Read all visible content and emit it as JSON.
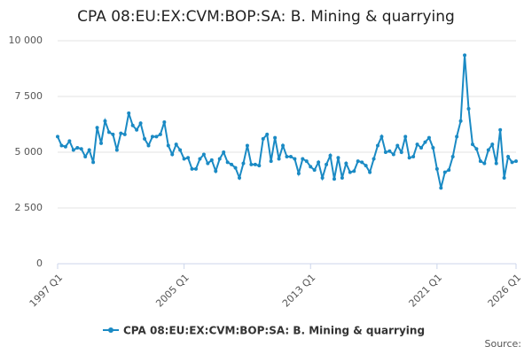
{
  "chart_data": {
    "type": "line",
    "title": "CPA 08:EU:EX:CVM:BOP:SA: B. Mining & quarrying",
    "source": "Source:",
    "categories": [
      "1997 Q1",
      null,
      null,
      null,
      null,
      null,
      null,
      null,
      null,
      null,
      null,
      null,
      null,
      null,
      null,
      null,
      null,
      null,
      null,
      null,
      null,
      null,
      null,
      null,
      null,
      null,
      null,
      null,
      null,
      null,
      null,
      null,
      "2005 Q1",
      null,
      null,
      null,
      null,
      null,
      null,
      null,
      null,
      null,
      null,
      null,
      null,
      null,
      null,
      null,
      null,
      null,
      null,
      null,
      null,
      null,
      null,
      null,
      null,
      null,
      null,
      null,
      null,
      null,
      null,
      null,
      "2013 Q1",
      null,
      null,
      null,
      null,
      null,
      null,
      null,
      null,
      null,
      null,
      null,
      null,
      null,
      null,
      null,
      null,
      null,
      null,
      null,
      null,
      null,
      null,
      null,
      null,
      null,
      null,
      null,
      null,
      null,
      null,
      null,
      "2021 Q1",
      null,
      null,
      null,
      null,
      null,
      null,
      null,
      null,
      null,
      null,
      null,
      null,
      null,
      null,
      null,
      null,
      null,
      null,
      null,
      "2026 Q1"
    ],
    "series": [
      {
        "name": "CPA 08:EU:EX:CVM:BOP:SA: B. Mining & quarrying",
        "color": "#1a8ac4",
        "values": [
          5700,
          5300,
          5250,
          5500,
          5100,
          5200,
          5150,
          4800,
          5100,
          4550,
          6100,
          5400,
          6400,
          5900,
          5800,
          5100,
          5850,
          5800,
          6750,
          6200,
          6000,
          6300,
          5600,
          5300,
          5700,
          5700,
          5800,
          6350,
          5300,
          4900,
          5350,
          5100,
          4700,
          4750,
          4250,
          4250,
          4700,
          4900,
          4500,
          4650,
          4150,
          4700,
          5000,
          4550,
          4450,
          4300,
          3850,
          4500,
          5300,
          4450,
          4450,
          4400,
          5600,
          5800,
          4600,
          5650,
          4700,
          5300,
          4800,
          4800,
          4700,
          4050,
          4700,
          4600,
          4350,
          4200,
          4550,
          3850,
          4450,
          4850,
          3800,
          4750,
          3850,
          4500,
          4100,
          4150,
          4600,
          4550,
          4400,
          4100,
          4700,
          5300,
          5700,
          5000,
          5050,
          4900,
          5300,
          5000,
          5700,
          4750,
          4800,
          5350,
          5200,
          5450,
          5650,
          5200,
          4250,
          3400,
          4100,
          4200,
          4800,
          5700,
          6400,
          9350,
          6950,
          5350,
          5150,
          4600,
          4500,
          5100,
          5350,
          4500,
          6000,
          3850,
          4800,
          4550,
          4600
        ]
      }
    ],
    "ylim": [
      0,
      10000
    ],
    "yticks": [
      0,
      {
        "value": 2500,
        "label": "2 500"
      },
      {
        "value": 5000,
        "label": "5 000"
      },
      {
        "value": 7500,
        "label": "7 500"
      },
      {
        "value": 10000,
        "label": "10 000"
      }
    ],
    "grid": true
  }
}
